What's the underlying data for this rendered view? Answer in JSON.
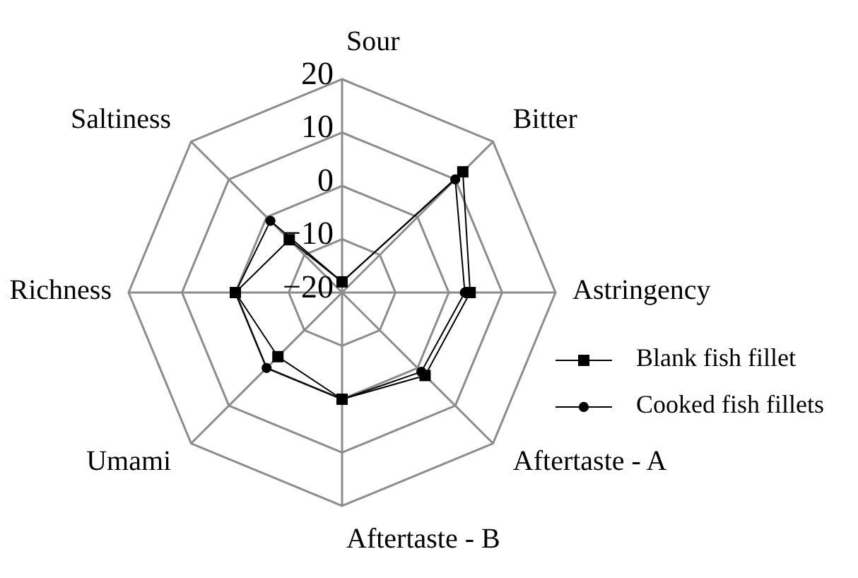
{
  "chart_data": {
    "type": "radar",
    "categories": [
      "Sour",
      "Bitter",
      "Astringency",
      "Aftertaste - A",
      "Aftertaste - B",
      "Umami",
      "Richness",
      "Saltiness"
    ],
    "series": [
      {
        "name": "Blank fish fillet",
        "color": "#000000",
        "marker": "square",
        "values": [
          -18,
          12,
          4,
          2,
          0,
          -3,
          0,
          -6
        ]
      },
      {
        "name": "Cooked fish fillets",
        "color": "#000000",
        "marker": "circle",
        "values": [
          -18,
          10,
          3,
          1,
          0,
          0,
          0,
          -1
        ]
      }
    ],
    "ylim": [
      -20,
      20
    ],
    "yticks": [
      -20,
      -10,
      0,
      10,
      20
    ],
    "grid": true,
    "legend": "right"
  }
}
